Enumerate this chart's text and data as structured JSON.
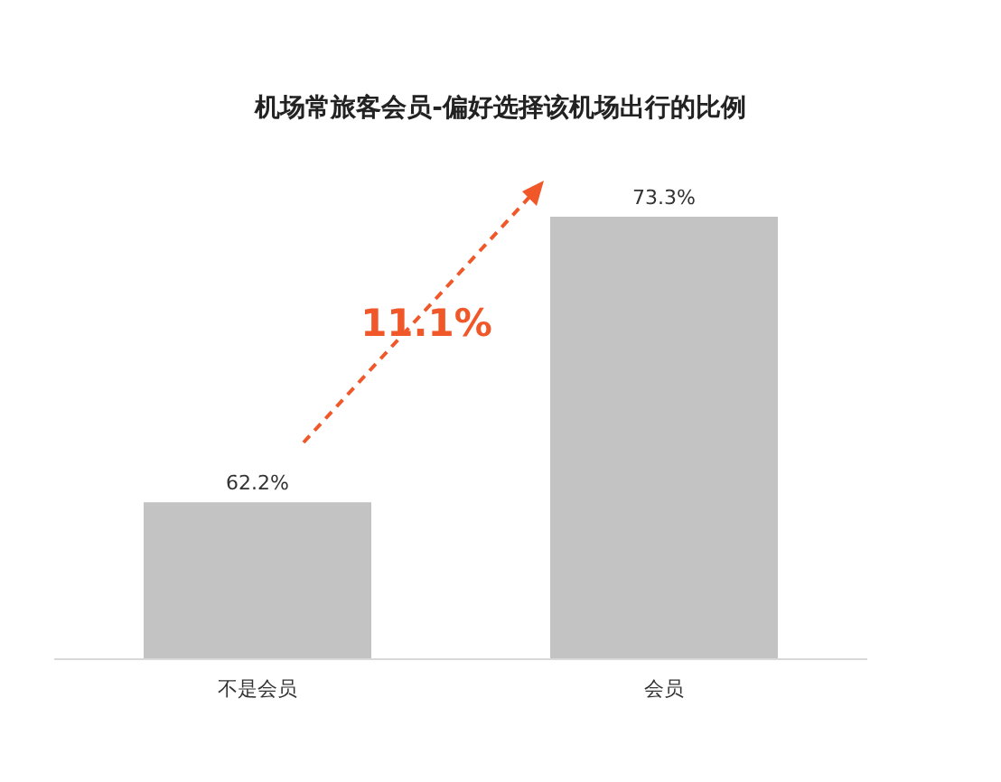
{
  "chart_data": {
    "type": "bar",
    "title": "机场常旅客会员-偏好选择该机场出行的比例",
    "categories": [
      "不是会员",
      "会员"
    ],
    "values": [
      62.2,
      73.3
    ],
    "value_labels": [
      "62.2%",
      "73.3%"
    ],
    "color": "#c3c3c3",
    "ylim": [
      56.1,
      73.3
    ],
    "annotations": [
      "11.1%"
    ]
  }
}
